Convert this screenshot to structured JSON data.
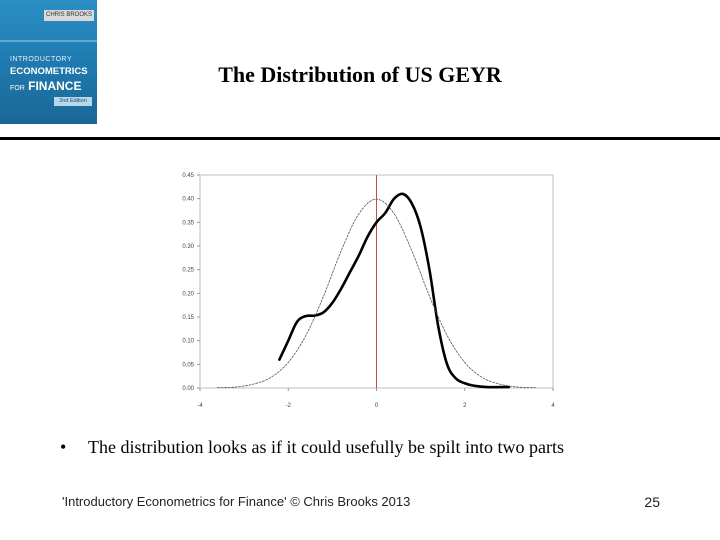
{
  "slide": {
    "title": "The Distribution of US GEYR",
    "bullet": "The distribution looks as if it could usefully be spilt into two parts",
    "bullet_symbol": "•",
    "footer_left": "'Introductory Econometrics for Finance' © Chris Brooks 2013",
    "page_number": "25"
  },
  "book_cover": {
    "author": "CHRIS BROOKS",
    "line1": "INTRODUCTORY",
    "line2": "ECONOMETRICS",
    "line3_small": "FOR",
    "line3": "FINANCE",
    "edition": "2nd Edition",
    "color": "#1f78ad"
  },
  "chart_data": {
    "type": "line",
    "xlim": [
      -4,
      4
    ],
    "ylim": [
      0,
      0.45
    ],
    "x_ticks": [
      -4,
      -2,
      0,
      2,
      4
    ],
    "x_tick_labels": [
      "-4",
      "-2",
      "0",
      "2",
      "4"
    ],
    "y_ticks": [
      0,
      0.05,
      0.1,
      0.15,
      0.2,
      0.25,
      0.3,
      0.35,
      0.4,
      0.45
    ],
    "y_tick_labels": [
      "0.00",
      "0.05",
      "0.10",
      "0.15",
      "0.20",
      "0.25",
      "0.30",
      "0.35",
      "0.40",
      "0.45"
    ],
    "vertical_line_x": 0,
    "vertical_line_color": "#c0504d",
    "grid": false,
    "series": [
      {
        "style": "thick",
        "color": "#000000",
        "x": [
          -2.2,
          -2.0,
          -1.8,
          -1.6,
          -1.4,
          -1.2,
          -1.0,
          -0.8,
          -0.6,
          -0.4,
          -0.2,
          0.0,
          0.2,
          0.4,
          0.6,
          0.8,
          1.0,
          1.2,
          1.4,
          1.6,
          1.8,
          2.0,
          2.2,
          2.5,
          3.0
        ],
        "y": [
          0.06,
          0.1,
          0.14,
          0.152,
          0.153,
          0.16,
          0.18,
          0.21,
          0.245,
          0.28,
          0.32,
          0.35,
          0.37,
          0.4,
          0.41,
          0.39,
          0.34,
          0.25,
          0.13,
          0.05,
          0.02,
          0.01,
          0.005,
          0.002,
          0.002
        ]
      },
      {
        "style": "thin",
        "color": "#555555",
        "x": [
          -3.6,
          -3.2,
          -2.8,
          -2.4,
          -2.0,
          -1.6,
          -1.2,
          -0.8,
          -0.4,
          0.0,
          0.4,
          0.8,
          1.2,
          1.6,
          2.0,
          2.4,
          2.8,
          3.2,
          3.6
        ],
        "y": [
          0.001,
          0.002,
          0.008,
          0.022,
          0.054,
          0.111,
          0.194,
          0.29,
          0.368,
          0.399,
          0.368,
          0.29,
          0.194,
          0.111,
          0.054,
          0.022,
          0.008,
          0.002,
          0.001
        ]
      }
    ]
  }
}
